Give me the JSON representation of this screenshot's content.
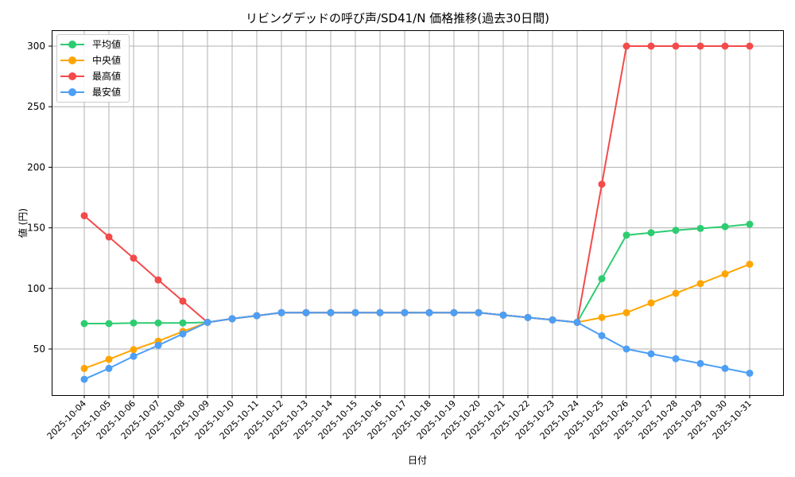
{
  "chart_data": {
    "type": "line",
    "title": "リビングデッドの呼び声/SD41/N 価格推移(過去30日間)",
    "xlabel": "日付",
    "ylabel": "値 (円)",
    "ylim": [
      15,
      313
    ],
    "yticks": [
      50,
      100,
      150,
      200,
      250,
      300
    ],
    "grid": true,
    "legend_position": "upper left",
    "x": [
      "2025-10-04",
      "2025-10-05",
      "2025-10-06",
      "2025-10-07",
      "2025-10-08",
      "2025-10-09",
      "2025-10-10",
      "2025-10-11",
      "2025-10-12",
      "2025-10-13",
      "2025-10-14",
      "2025-10-15",
      "2025-10-16",
      "2025-10-17",
      "2025-10-18",
      "2025-10-19",
      "2025-10-20",
      "2025-10-21",
      "2025-10-22",
      "2025-10-23",
      "2025-10-24",
      "2025-10-25",
      "2025-10-26",
      "2025-10-27",
      "2025-10-28",
      "2025-10-29",
      "2025-10-30",
      "2025-10-31"
    ],
    "series": [
      {
        "name": "平均値",
        "color": "#2ecc71",
        "values": [
          71,
          71,
          71.5,
          71.5,
          71.5,
          72,
          75,
          77.5,
          80,
          80,
          80,
          80,
          80,
          80,
          80,
          80,
          80,
          78,
          76,
          74,
          72,
          108,
          144,
          146,
          148,
          149.5,
          151,
          153
        ]
      },
      {
        "name": "中央値",
        "color": "#ffa500",
        "values": [
          34,
          41.5,
          49.5,
          56.5,
          64.5,
          72,
          75,
          77.5,
          80,
          80,
          80,
          80,
          80,
          80,
          80,
          80,
          80,
          78,
          76,
          74,
          72,
          76,
          80,
          88,
          96,
          104,
          112,
          120
        ]
      },
      {
        "name": "最高値",
        "color": "#f44a4a",
        "values": [
          160,
          142.5,
          125,
          107,
          89.5,
          72,
          75,
          77.5,
          80,
          80,
          80,
          80,
          80,
          80,
          80,
          80,
          80,
          78,
          76,
          74,
          72,
          186,
          300,
          300,
          300,
          300,
          300,
          300
        ]
      },
      {
        "name": "最安値",
        "color": "#4d9ff5",
        "values": [
          25,
          34,
          44,
          53,
          62.5,
          72,
          75,
          77.5,
          80,
          80,
          80,
          80,
          80,
          80,
          80,
          80,
          80,
          78,
          76,
          74,
          72,
          61,
          50,
          46,
          42,
          38,
          34,
          30
        ]
      }
    ]
  }
}
